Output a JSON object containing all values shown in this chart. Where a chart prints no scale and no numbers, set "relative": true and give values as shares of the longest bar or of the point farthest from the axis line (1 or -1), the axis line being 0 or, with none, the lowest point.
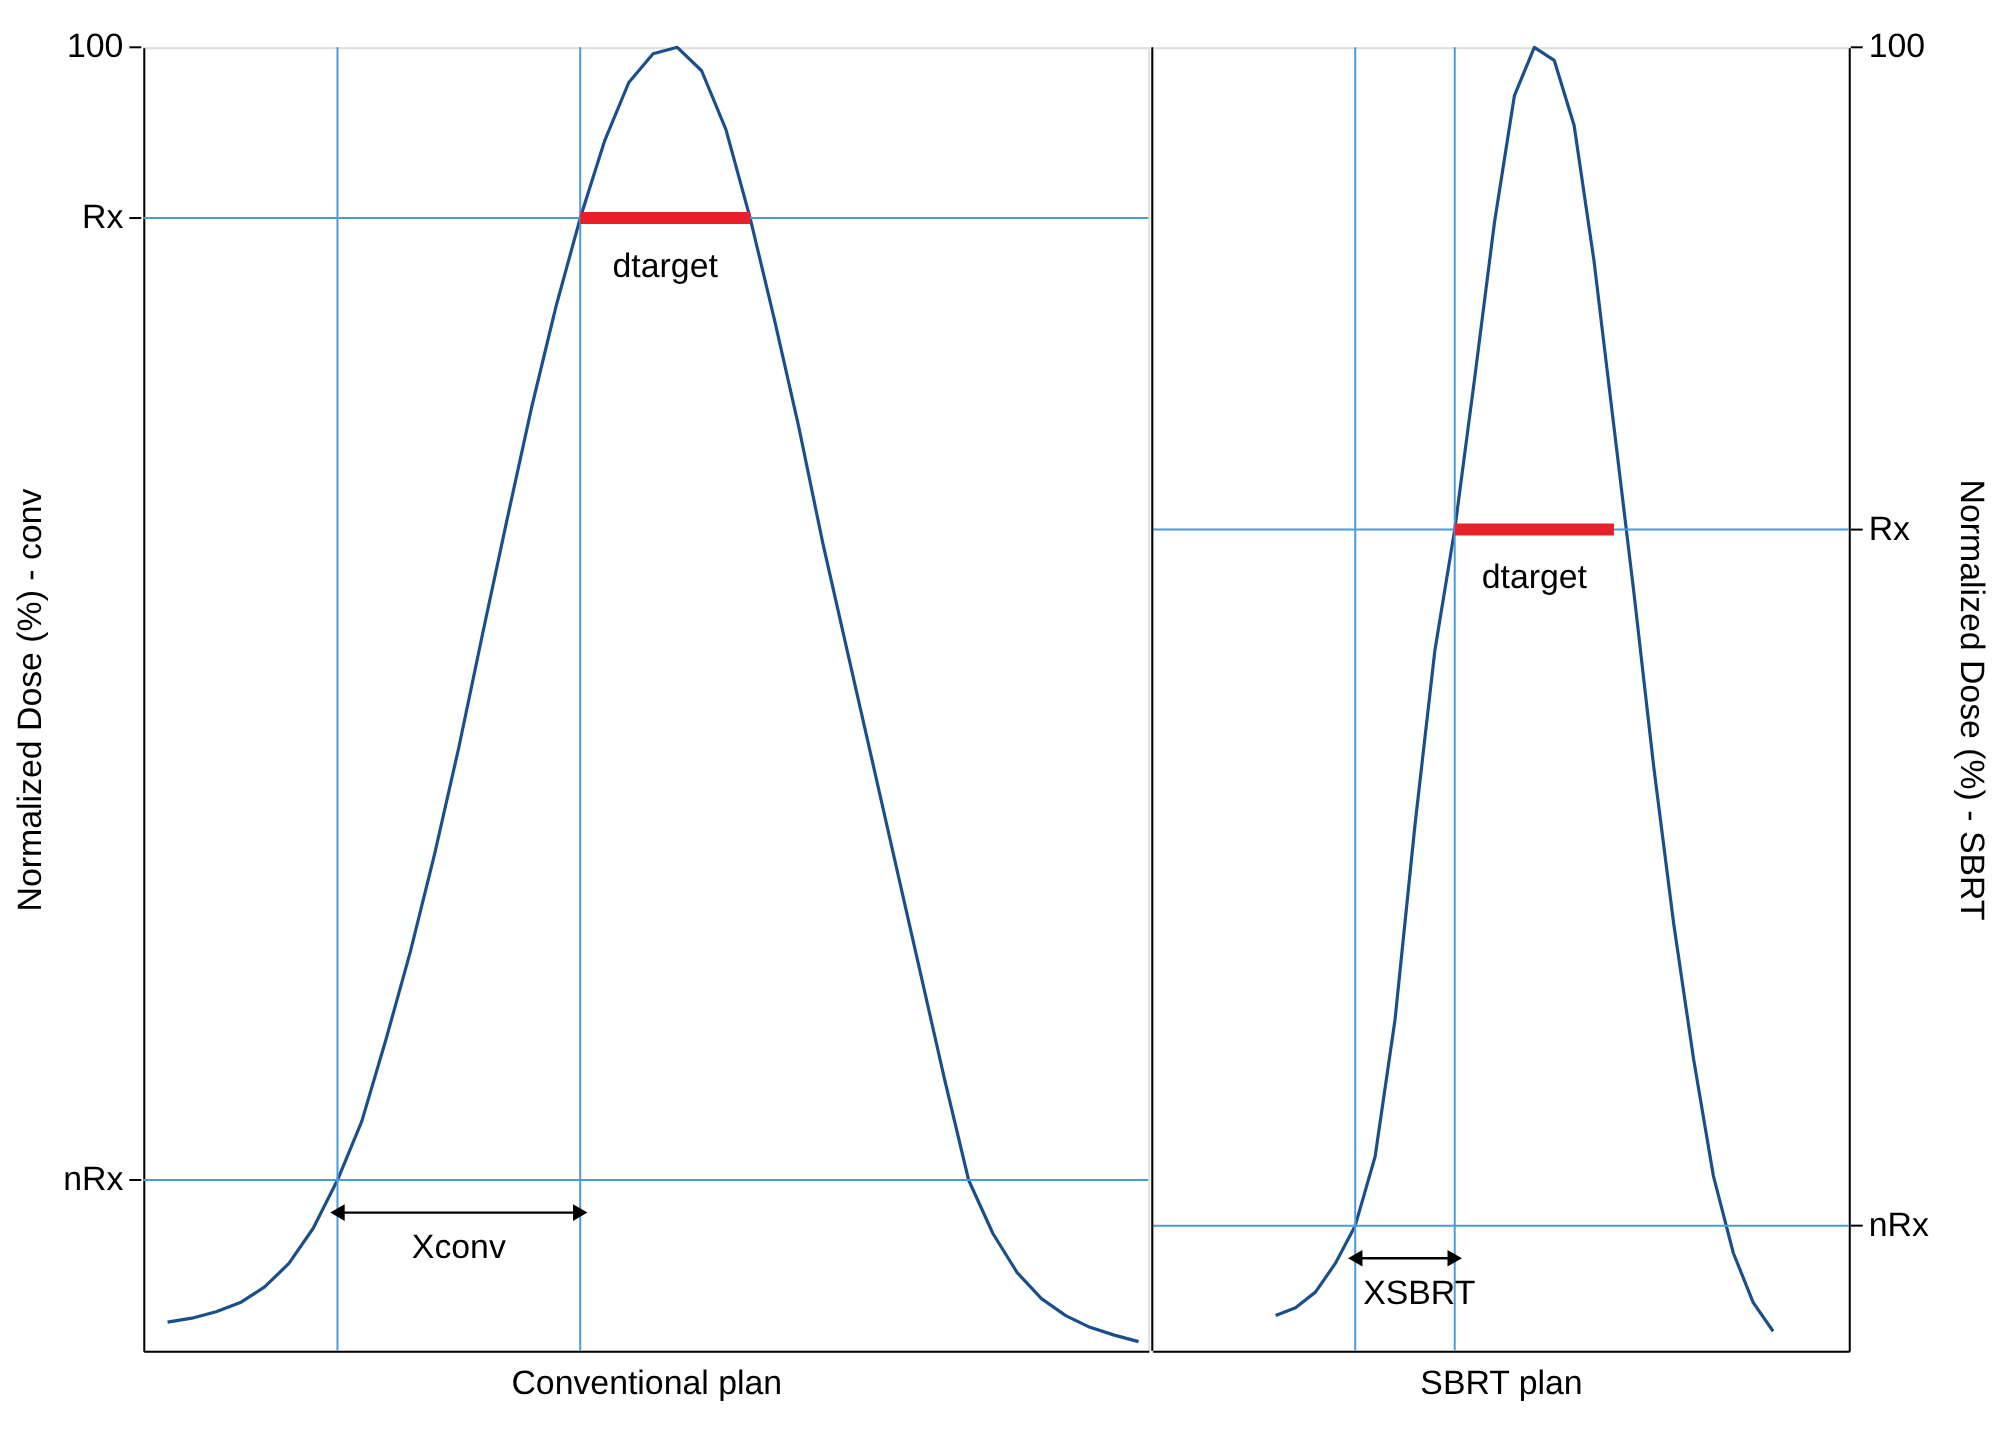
{
  "chart_data": [
    {
      "type": "line",
      "relative": true,
      "xlabel": "Conventional plan",
      "ylabel": "Normalized Dose (%) - conv",
      "annotations": [
        "dtarget",
        "Xconv"
      ],
      "categories": [
        null,
        null,
        null,
        null,
        null,
        null,
        null,
        null,
        null,
        null,
        null,
        null,
        null,
        null,
        null,
        null,
        null,
        null,
        null,
        null,
        null,
        null,
        null,
        null,
        null,
        null,
        null,
        null,
        null,
        null,
        null,
        null,
        null,
        null,
        null,
        null,
        null,
        null,
        null,
        null,
        null
      ],
      "series": [
        {
          "color": "#1b4f8a",
          "values": [
            0.022,
            0.025,
            0.03,
            0.037,
            0.049,
            0.067,
            0.094,
            0.131,
            0.176,
            0.239,
            0.306,
            0.381,
            0.463,
            0.552,
            0.639,
            0.724,
            0.801,
            0.869,
            0.928,
            0.973,
            0.995,
            1,
            0.982,
            0.937,
            0.869,
            0.791,
            0.709,
            0.619,
            0.537,
            0.455,
            0.373,
            0.291,
            0.209,
            0.131,
            0.09,
            0.06,
            0.04,
            0.027,
            0.018,
            0.012,
            0.007
          ]
        },
        {
          "color": "#e8202a",
          "values": [
            null,
            null,
            null,
            null,
            null,
            null,
            null,
            null,
            null,
            null,
            null,
            null,
            null,
            null,
            null,
            null,
            null,
            0.869,
            0.869,
            0.869,
            0.869,
            0.869,
            0.869,
            0.869,
            0.869,
            null,
            null,
            null,
            null,
            null,
            null,
            null,
            null,
            null,
            null,
            null,
            null,
            null,
            null,
            null,
            null
          ]
        }
      ],
      "ref_lines": [
        {
          "axis": "y",
          "value": 1,
          "label": "100"
        },
        {
          "axis": "y",
          "value": 0.869,
          "label": "Rx",
          "color": "#4a9bd9"
        },
        {
          "axis": "y",
          "value": 0.131,
          "label": "nRx",
          "color": "#4a9bd9"
        }
      ]
    },
    {
      "type": "line",
      "relative": true,
      "xlabel": "SBRT plan",
      "ylabel": "Normalized Dose (%) - SBRT",
      "annotations": [
        "dtarget",
        "XSBRT"
      ],
      "categories": [
        null,
        null,
        null,
        null,
        null,
        null,
        null,
        null,
        null,
        null,
        null,
        null,
        null,
        null,
        null,
        null,
        null,
        null,
        null,
        null,
        null,
        null,
        null,
        null,
        null,
        null
      ],
      "series": [
        {
          "color": "#1b4f8a",
          "values": [
            0.027,
            0.033,
            0.045,
            0.067,
            0.096,
            0.149,
            0.254,
            0.403,
            0.537,
            0.63,
            0.746,
            0.866,
            0.963,
            1,
            0.99,
            0.94,
            0.836,
            0.709,
            0.582,
            0.448,
            0.328,
            0.224,
            0.134,
            0.075,
            0.037,
            0.015
          ]
        },
        {
          "color": "#e8202a",
          "values": [
            null,
            null,
            null,
            null,
            null,
            null,
            null,
            null,
            null,
            0.63,
            0.63,
            0.63,
            0.63,
            0.63,
            0.63,
            0.63,
            0.63,
            0.63,
            null,
            null,
            null,
            null,
            null,
            null,
            null,
            null
          ]
        }
      ],
      "ref_lines": [
        {
          "axis": "y",
          "value": 1,
          "label": "100"
        },
        {
          "axis": "y",
          "value": 0.63,
          "label": "Rx",
          "color": "#4a9bd9"
        },
        {
          "axis": "y",
          "value": 0.096,
          "label": "nRx",
          "color": "#4a9bd9"
        }
      ]
    }
  ]
}
